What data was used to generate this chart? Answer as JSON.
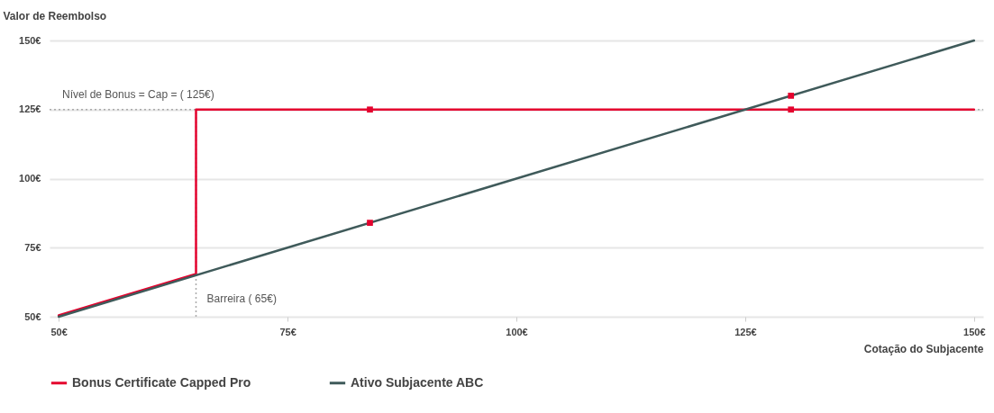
{
  "chart_data": {
    "type": "line",
    "xlabel": "Cotação do Subjacente",
    "ylabel": "Valor de Reembolso",
    "xlim": [
      49,
      151
    ],
    "ylim": [
      50,
      150
    ],
    "xticks": [
      {
        "value": 50,
        "label": "50€"
      },
      {
        "value": 75,
        "label": "75€"
      },
      {
        "value": 100,
        "label": "100€"
      },
      {
        "value": 125,
        "label": "125€"
      },
      {
        "value": 150,
        "label": "150€"
      }
    ],
    "yticks": [
      {
        "value": 50,
        "label": "50€"
      },
      {
        "value": 75,
        "label": "75€"
      },
      {
        "value": 100,
        "label": "100€"
      },
      {
        "value": 125,
        "label": "125€"
      },
      {
        "value": 150,
        "label": "150€"
      }
    ],
    "series": [
      {
        "name": "Bonus Certificate Capped Pro",
        "color": "#e4032e",
        "x": [
          50,
          65,
          65,
          150
        ],
        "values": [
          50.5,
          65.5,
          125,
          125
        ]
      },
      {
        "name": "Ativo Subjacente ABC",
        "color": "#3f5a5a",
        "x": [
          50,
          150
        ],
        "values": [
          50,
          150
        ]
      },
      {
        "type": "scatter",
        "marker": "square",
        "color": "#e4032e",
        "x": [
          84,
          84,
          130,
          130
        ],
        "values": [
          125,
          84,
          130,
          125
        ]
      }
    ],
    "ref_lines": [
      {
        "axis": "y",
        "value": 125,
        "label": "Nível de Bonus = Cap = ( 125€)",
        "color": "#aaaaaa",
        "line_style": "dotted"
      },
      {
        "axis": "x",
        "value": 65,
        "label": "Barreira ( 65€)",
        "color": "#aaaaaa",
        "line_style": "dotted"
      }
    ],
    "grid": "y",
    "legend": "bottom"
  }
}
